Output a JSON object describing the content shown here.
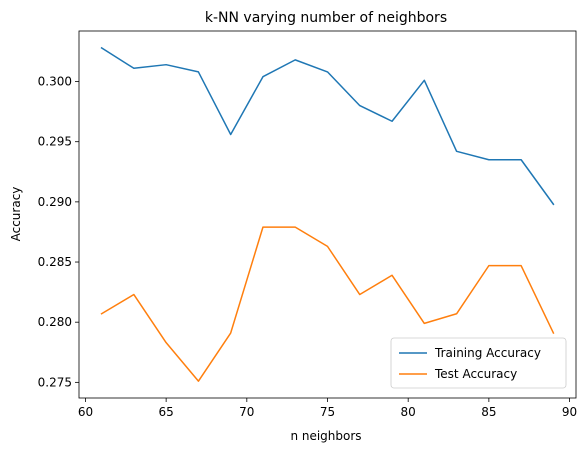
{
  "chart_data": {
    "type": "line",
    "title": "k-NN varying number of neighbors",
    "xlabel": "n neighbors",
    "ylabel": "Accuracy",
    "xlim": [
      59.6,
      90.4
    ],
    "ylim": [
      0.2737,
      0.3042
    ],
    "xticks": [
      60,
      65,
      70,
      75,
      80,
      85,
      90
    ],
    "yticks": [
      0.275,
      0.28,
      0.285,
      0.29,
      0.295,
      0.3
    ],
    "ytick_labels": [
      "0.275",
      "0.280",
      "0.285",
      "0.290",
      "0.295",
      "0.300"
    ],
    "grid": false,
    "legend_position": "lower right",
    "x": [
      61,
      63,
      65,
      67,
      69,
      71,
      73,
      75,
      77,
      79,
      81,
      83,
      85,
      87,
      89
    ],
    "series": [
      {
        "name": "Training Accuracy",
        "color": "#1f77b4",
        "values": [
          0.3028,
          0.3011,
          0.3014,
          0.3008,
          0.2956,
          0.3004,
          0.3018,
          0.3008,
          0.298,
          0.2967,
          0.3001,
          0.2942,
          0.2935,
          0.2935,
          0.2898
        ]
      },
      {
        "name": "Test Accuracy",
        "color": "#ff7f0e",
        "values": [
          0.2807,
          0.2823,
          0.2783,
          0.2751,
          0.2791,
          0.2879,
          0.2879,
          0.2863,
          0.2823,
          0.2839,
          0.2799,
          0.2807,
          0.2847,
          0.2847,
          0.2791
        ]
      }
    ]
  }
}
